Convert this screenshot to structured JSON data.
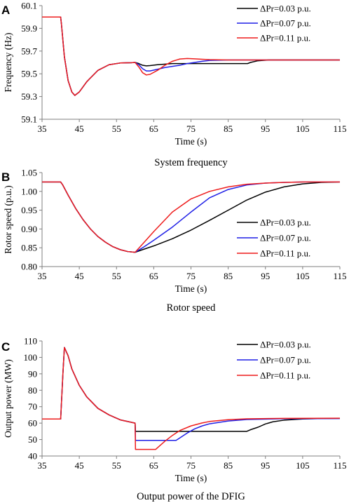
{
  "colors": {
    "series_1": "#000000",
    "series_2": "#1f1fe6",
    "series_3": "#ee1c1c"
  },
  "chart_data": [
    {
      "type": "line",
      "panel_label": "A",
      "caption": "System frequency",
      "xlabel": "Time (s)",
      "ylabel": "Frequency (Hz)",
      "xlim": [
        35,
        115
      ],
      "ylim": [
        59.1,
        60.1
      ],
      "xticks": [
        "35",
        "45",
        "55",
        "65",
        "75",
        "85",
        "95",
        "105",
        "115"
      ],
      "yticks": [
        "59.1",
        "59.3",
        "59.5",
        "59.7",
        "59.9",
        "60.1"
      ],
      "legend_position": "top-right",
      "series": [
        {
          "name": "ΔPr=0.03 p.u.",
          "color": "#000000",
          "x": [
            35,
            39.99,
            40.2,
            41,
            42,
            43,
            43.8,
            45,
            47,
            50,
            53,
            56,
            59,
            60,
            61,
            62,
            63,
            64,
            66,
            70,
            75,
            80,
            85,
            90.2,
            91,
            93,
            96,
            100,
            105,
            110,
            115
          ],
          "y": [
            60.0,
            60.0,
            59.94,
            59.65,
            59.44,
            59.34,
            59.31,
            59.34,
            59.43,
            59.53,
            59.58,
            59.595,
            59.598,
            59.6,
            59.59,
            59.575,
            59.57,
            59.572,
            59.58,
            59.59,
            59.59,
            59.59,
            59.59,
            59.59,
            59.6,
            59.615,
            59.622,
            59.622,
            59.622,
            59.622,
            59.622
          ]
        },
        {
          "name": "ΔPr=0.07 p.u.",
          "color": "#1f1fe6",
          "x": [
            35,
            39.99,
            40.2,
            41,
            42,
            43,
            43.8,
            45,
            47,
            50,
            53,
            56,
            59,
            60,
            61,
            62,
            63,
            64,
            66,
            68,
            70,
            72,
            74,
            76,
            78,
            80,
            85,
            90,
            100,
            115
          ],
          "y": [
            60.0,
            60.0,
            59.94,
            59.65,
            59.44,
            59.34,
            59.31,
            59.34,
            59.43,
            59.53,
            59.58,
            59.595,
            59.598,
            59.6,
            59.58,
            59.545,
            59.525,
            59.525,
            59.54,
            59.555,
            59.565,
            59.575,
            59.59,
            59.6,
            59.61,
            59.618,
            59.622,
            59.622,
            59.622,
            59.622
          ]
        },
        {
          "name": "ΔPr=0.11 p.u.",
          "color": "#ee1c1c",
          "x": [
            35,
            39.99,
            40.2,
            41,
            42,
            43,
            43.8,
            45,
            47,
            50,
            53,
            56,
            59,
            60,
            61,
            62,
            63,
            64,
            66,
            68,
            70,
            72,
            74,
            76,
            78,
            80,
            85,
            90,
            100,
            115
          ],
          "y": [
            60.0,
            60.0,
            59.94,
            59.65,
            59.44,
            59.34,
            59.31,
            59.34,
            59.43,
            59.53,
            59.58,
            59.595,
            59.598,
            59.6,
            59.56,
            59.51,
            59.49,
            59.495,
            59.53,
            59.575,
            59.61,
            59.63,
            59.635,
            59.632,
            59.628,
            59.625,
            59.622,
            59.622,
            59.622,
            59.622
          ]
        }
      ]
    },
    {
      "type": "line",
      "panel_label": "B",
      "caption": "Rotor speed",
      "xlabel": "Time (s)",
      "ylabel": "Rotor speed (p.u.)",
      "xlim": [
        35,
        115
      ],
      "ylim": [
        0.8,
        1.05
      ],
      "xticks": [
        "35",
        "45",
        "55",
        "65",
        "75",
        "85",
        "95",
        "105",
        "115"
      ],
      "yticks": [
        "0.80",
        "0.85",
        "0.90",
        "0.95",
        "1.00",
        "1.05"
      ],
      "legend_position": "bottom-right",
      "series": [
        {
          "name": "ΔPr=0.03 p.u.",
          "color": "#000000",
          "x": [
            35,
            40,
            40.5,
            42,
            44,
            46,
            48,
            50,
            52,
            54,
            56,
            58,
            60,
            62,
            65,
            70,
            75,
            80,
            85,
            90,
            95,
            100,
            105,
            110,
            115
          ],
          "y": [
            1.025,
            1.025,
            1.018,
            0.99,
            0.955,
            0.925,
            0.9,
            0.88,
            0.865,
            0.853,
            0.845,
            0.84,
            0.838,
            0.845,
            0.855,
            0.874,
            0.897,
            0.923,
            0.95,
            0.977,
            0.998,
            1.012,
            1.02,
            1.024,
            1.025
          ]
        },
        {
          "name": "ΔPr=0.07 p.u.",
          "color": "#1f1fe6",
          "x": [
            35,
            40,
            40.5,
            42,
            44,
            46,
            48,
            50,
            52,
            54,
            56,
            58,
            60,
            62,
            65,
            70,
            75,
            80,
            85,
            90,
            95,
            100,
            105,
            110,
            115
          ],
          "y": [
            1.025,
            1.025,
            1.018,
            0.99,
            0.955,
            0.925,
            0.9,
            0.88,
            0.865,
            0.853,
            0.845,
            0.84,
            0.838,
            0.85,
            0.87,
            0.905,
            0.945,
            0.983,
            1.005,
            1.017,
            1.022,
            1.024,
            1.025,
            1.025,
            1.025
          ]
        },
        {
          "name": "ΔPr=0.11 p.u.",
          "color": "#ee1c1c",
          "x": [
            35,
            40,
            40.5,
            42,
            44,
            46,
            48,
            50,
            52,
            54,
            56,
            58,
            60,
            62,
            65,
            70,
            75,
            80,
            85,
            90,
            95,
            100,
            105,
            110,
            115
          ],
          "y": [
            1.025,
            1.025,
            1.018,
            0.99,
            0.955,
            0.925,
            0.9,
            0.88,
            0.865,
            0.853,
            0.845,
            0.84,
            0.838,
            0.86,
            0.893,
            0.945,
            0.98,
            1.0,
            1.012,
            1.019,
            1.022,
            1.024,
            1.025,
            1.025,
            1.025
          ]
        }
      ]
    },
    {
      "type": "line",
      "panel_label": "C",
      "caption": "Output power of the DFIG",
      "xlabel": "Time (s)",
      "ylabel": "Output power (MW)",
      "xlim": [
        35,
        115
      ],
      "ylim": [
        40,
        110
      ],
      "xticks": [
        "35",
        "45",
        "55",
        "65",
        "75",
        "85",
        "95",
        "105",
        "115"
      ],
      "yticks": [
        "40",
        "50",
        "60",
        "70",
        "80",
        "90",
        "100",
        "110"
      ],
      "legend_position": "top-right",
      "series": [
        {
          "name": "ΔPr=0.03 p.u.",
          "color": "#000000",
          "x": [
            35,
            40,
            40.6,
            41,
            42,
            43,
            45,
            47,
            50,
            53,
            56,
            59.99,
            60,
            60.1,
            90,
            91,
            93,
            95,
            97,
            100,
            105,
            110,
            115
          ],
          "y": [
            62.5,
            62.5,
            90,
            106,
            101,
            93,
            83,
            76,
            69,
            65,
            62,
            60,
            59.5,
            55,
            55,
            56,
            57.5,
            59.5,
            60.8,
            61.8,
            62.5,
            62.8,
            62.9
          ]
        },
        {
          "name": "ΔPr=0.07 p.u.",
          "color": "#1f1fe6",
          "x": [
            35,
            40,
            40.6,
            41,
            42,
            43,
            45,
            47,
            50,
            53,
            56,
            59.99,
            60,
            60.1,
            71,
            72,
            74,
            76,
            78,
            80,
            85,
            90,
            100,
            115
          ],
          "y": [
            62.5,
            62.5,
            90,
            106,
            101,
            93,
            83,
            76,
            69,
            65,
            62,
            60,
            59.5,
            49.5,
            49.5,
            51,
            54,
            56.5,
            58.3,
            59.6,
            61.3,
            62.2,
            62.7,
            62.8
          ]
        },
        {
          "name": "ΔPr=0.11 p.u.",
          "color": "#ee1c1c",
          "x": [
            35,
            40,
            40.6,
            41,
            42,
            43,
            45,
            47,
            50,
            53,
            56,
            59.99,
            60,
            60.1,
            65.5,
            66.5,
            68,
            70,
            72,
            75,
            78,
            80,
            85,
            90,
            100,
            115
          ],
          "y": [
            62.5,
            62.5,
            90,
            106,
            101,
            93,
            83,
            76,
            69,
            65,
            62,
            60,
            59.5,
            44,
            44,
            46,
            49,
            52.5,
            55.5,
            58.3,
            60.1,
            61,
            62.1,
            62.6,
            62.9,
            63
          ]
        }
      ]
    }
  ]
}
